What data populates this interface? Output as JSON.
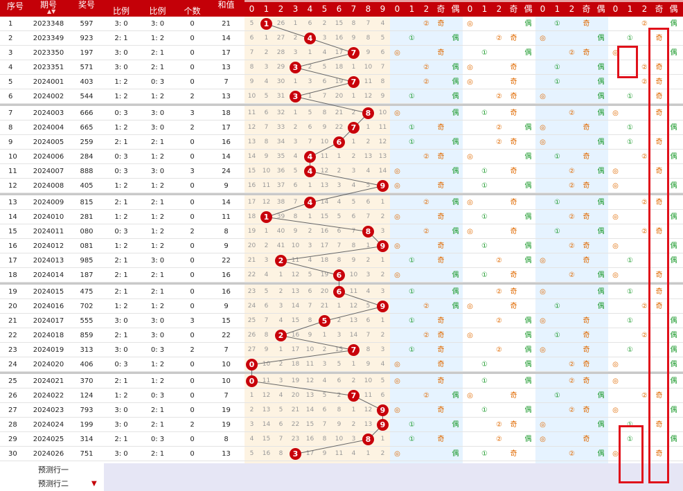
{
  "columns": {
    "info": [
      "序号",
      "期号",
      "奖号",
      "比例",
      "比例",
      "个数",
      "和值"
    ],
    "digits": [
      "0",
      "1",
      "2",
      "3",
      "4",
      "5",
      "6",
      "7",
      "8",
      "9"
    ],
    "road": [
      "0",
      "1",
      "2",
      "奇",
      "偶"
    ]
  },
  "sort_icon": "red-sort-arrows-icon",
  "rows": [
    {
      "seq": "1",
      "issue": "2023348",
      "num": "597",
      "r1": "3: 0",
      "r2": "3: 0",
      "cnt": "0",
      "sum": "21",
      "d": [
        "5",
        "1",
        "26",
        "1",
        "6",
        "2",
        "15",
        "8",
        "7",
        "4"
      ],
      "ball": 1
    },
    {
      "seq": "2",
      "issue": "2023349",
      "num": "923",
      "r1": "2: 1",
      "r2": "1: 2",
      "cnt": "0",
      "sum": "14",
      "d": [
        "6",
        "1",
        "27",
        "2",
        "4",
        "3",
        "16",
        "9",
        "8",
        "5"
      ],
      "ball": 4
    },
    {
      "seq": "3",
      "issue": "2023350",
      "num": "197",
      "r1": "3: 0",
      "r2": "2: 1",
      "cnt": "0",
      "sum": "17",
      "d": [
        "7",
        "2",
        "28",
        "3",
        "1",
        "4",
        "17",
        "7",
        "9",
        "6"
      ],
      "ball": 7
    },
    {
      "seq": "4",
      "issue": "2023351",
      "num": "571",
      "r1": "3: 0",
      "r2": "2: 1",
      "cnt": "0",
      "sum": "13",
      "d": [
        "8",
        "3",
        "29",
        "3",
        "2",
        "5",
        "18",
        "1",
        "10",
        "7"
      ],
      "ball": 3
    },
    {
      "seq": "5",
      "issue": "2024001",
      "num": "403",
      "r1": "1: 2",
      "r2": "0: 3",
      "cnt": "0",
      "sum": "7",
      "d": [
        "9",
        "4",
        "30",
        "1",
        "3",
        "6",
        "19",
        "7",
        "11",
        "8"
      ],
      "ball": 7
    },
    {
      "seq": "6",
      "issue": "2024002",
      "num": "544",
      "r1": "1: 2",
      "r2": "1: 2",
      "cnt": "2",
      "sum": "13",
      "d": [
        "10",
        "5",
        "31",
        "3",
        "1",
        "7",
        "20",
        "1",
        "12",
        "9"
      ],
      "ball": 3
    },
    {
      "seq": "7",
      "issue": "2024003",
      "num": "666",
      "r1": "0: 3",
      "r2": "3: 0",
      "cnt": "3",
      "sum": "18",
      "d": [
        "11",
        "6",
        "32",
        "1",
        "5",
        "8",
        "21",
        "2",
        "8",
        "10"
      ],
      "ball": 8
    },
    {
      "seq": "8",
      "issue": "2024004",
      "num": "665",
      "r1": "1: 2",
      "r2": "3: 0",
      "cnt": "2",
      "sum": "17",
      "d": [
        "12",
        "7",
        "33",
        "2",
        "6",
        "9",
        "22",
        "7",
        "1",
        "11"
      ],
      "ball": 7
    },
    {
      "seq": "9",
      "issue": "2024005",
      "num": "259",
      "r1": "2: 1",
      "r2": "2: 1",
      "cnt": "0",
      "sum": "16",
      "d": [
        "13",
        "8",
        "34",
        "3",
        "7",
        "10",
        "6",
        "1",
        "2",
        "12"
      ],
      "ball": 6
    },
    {
      "seq": "10",
      "issue": "2024006",
      "num": "284",
      "r1": "0: 3",
      "r2": "1: 2",
      "cnt": "0",
      "sum": "14",
      "d": [
        "14",
        "9",
        "35",
        "4",
        "4",
        "11",
        "1",
        "2",
        "13",
        "13"
      ],
      "ball": 4
    },
    {
      "seq": "11",
      "issue": "2024007",
      "num": "888",
      "r1": "0: 3",
      "r2": "3: 0",
      "cnt": "3",
      "sum": "24",
      "d": [
        "15",
        "10",
        "36",
        "5",
        "4",
        "12",
        "2",
        "3",
        "4",
        "14"
      ],
      "ball": 4
    },
    {
      "seq": "12",
      "issue": "2024008",
      "num": "405",
      "r1": "1: 2",
      "r2": "1: 2",
      "cnt": "0",
      "sum": "9",
      "d": [
        "16",
        "11",
        "37",
        "6",
        "1",
        "13",
        "3",
        "4",
        "5",
        "9"
      ],
      "ball": 9
    },
    {
      "seq": "13",
      "issue": "2024009",
      "num": "815",
      "r1": "2: 1",
      "r2": "2: 1",
      "cnt": "0",
      "sum": "14",
      "d": [
        "17",
        "12",
        "38",
        "7",
        "4",
        "14",
        "4",
        "5",
        "6",
        "1"
      ],
      "ball": 4
    },
    {
      "seq": "14",
      "issue": "2024010",
      "num": "281",
      "r1": "1: 2",
      "r2": "1: 2",
      "cnt": "0",
      "sum": "11",
      "d": [
        "18",
        "1",
        "39",
        "8",
        "1",
        "15",
        "5",
        "6",
        "7",
        "2"
      ],
      "ball": 1
    },
    {
      "seq": "15",
      "issue": "2024011",
      "num": "080",
      "r1": "0: 3",
      "r2": "1: 2",
      "cnt": "2",
      "sum": "8",
      "d": [
        "19",
        "1",
        "40",
        "9",
        "2",
        "16",
        "6",
        "7",
        "8",
        "3"
      ],
      "ball": 8
    },
    {
      "seq": "16",
      "issue": "2024012",
      "num": "081",
      "r1": "1: 2",
      "r2": "1: 2",
      "cnt": "0",
      "sum": "9",
      "d": [
        "20",
        "2",
        "41",
        "10",
        "3",
        "17",
        "7",
        "8",
        "1",
        "9"
      ],
      "ball": 9
    },
    {
      "seq": "17",
      "issue": "2024013",
      "num": "985",
      "r1": "2: 1",
      "r2": "3: 0",
      "cnt": "0",
      "sum": "22",
      "d": [
        "21",
        "3",
        "2",
        "11",
        "4",
        "18",
        "8",
        "9",
        "2",
        "1"
      ],
      "ball": 2
    },
    {
      "seq": "18",
      "issue": "2024014",
      "num": "187",
      "r1": "2: 1",
      "r2": "2: 1",
      "cnt": "0",
      "sum": "16",
      "d": [
        "22",
        "4",
        "1",
        "12",
        "5",
        "19",
        "6",
        "10",
        "3",
        "2"
      ],
      "ball": 6
    },
    {
      "seq": "19",
      "issue": "2024015",
      "num": "475",
      "r1": "2: 1",
      "r2": "2: 1",
      "cnt": "0",
      "sum": "16",
      "d": [
        "23",
        "5",
        "2",
        "13",
        "6",
        "20",
        "6",
        "11",
        "4",
        "3"
      ],
      "ball": 6
    },
    {
      "seq": "20",
      "issue": "2024016",
      "num": "702",
      "r1": "1: 2",
      "r2": "1: 2",
      "cnt": "0",
      "sum": "9",
      "d": [
        "24",
        "6",
        "3",
        "14",
        "7",
        "21",
        "1",
        "12",
        "5",
        "9"
      ],
      "ball": 9
    },
    {
      "seq": "21",
      "issue": "2024017",
      "num": "555",
      "r1": "3: 0",
      "r2": "3: 0",
      "cnt": "3",
      "sum": "15",
      "d": [
        "25",
        "7",
        "4",
        "15",
        "8",
        "5",
        "2",
        "13",
        "6",
        "1"
      ],
      "ball": 5
    },
    {
      "seq": "22",
      "issue": "2024018",
      "num": "859",
      "r1": "2: 1",
      "r2": "3: 0",
      "cnt": "0",
      "sum": "22",
      "d": [
        "26",
        "8",
        "2",
        "16",
        "9",
        "1",
        "3",
        "14",
        "7",
        "2"
      ],
      "ball": 2
    },
    {
      "seq": "23",
      "issue": "2024019",
      "num": "313",
      "r1": "3: 0",
      "r2": "0: 3",
      "cnt": "2",
      "sum": "7",
      "d": [
        "27",
        "9",
        "1",
        "17",
        "10",
        "2",
        "15",
        "7",
        "8",
        "3"
      ],
      "ball": 7
    },
    {
      "seq": "24",
      "issue": "2024020",
      "num": "406",
      "r1": "0: 3",
      "r2": "1: 2",
      "cnt": "0",
      "sum": "10",
      "d": [
        "0",
        "10",
        "2",
        "18",
        "11",
        "3",
        "5",
        "1",
        "9",
        "4"
      ],
      "ball": 0
    },
    {
      "seq": "25",
      "issue": "2024021",
      "num": "370",
      "r1": "2: 1",
      "r2": "1: 2",
      "cnt": "0",
      "sum": "10",
      "d": [
        "0",
        "11",
        "3",
        "19",
        "12",
        "4",
        "6",
        "2",
        "10",
        "5"
      ],
      "ball": 0
    },
    {
      "seq": "26",
      "issue": "2024022",
      "num": "124",
      "r1": "1: 2",
      "r2": "0: 3",
      "cnt": "0",
      "sum": "7",
      "d": [
        "1",
        "12",
        "4",
        "20",
        "13",
        "5",
        "2",
        "7",
        "11",
        "6"
      ],
      "ball": 7
    },
    {
      "seq": "27",
      "issue": "2024023",
      "num": "793",
      "r1": "3: 0",
      "r2": "2: 1",
      "cnt": "0",
      "sum": "19",
      "d": [
        "2",
        "13",
        "5",
        "21",
        "14",
        "6",
        "8",
        "1",
        "12",
        "9"
      ],
      "ball": 9
    },
    {
      "seq": "28",
      "issue": "2024024",
      "num": "199",
      "r1": "3: 0",
      "r2": "2: 1",
      "cnt": "2",
      "sum": "19",
      "d": [
        "3",
        "14",
        "6",
        "22",
        "15",
        "7",
        "9",
        "2",
        "13",
        "9"
      ],
      "ball": 9
    },
    {
      "seq": "29",
      "issue": "2024025",
      "num": "314",
      "r1": "2: 1",
      "r2": "0: 3",
      "cnt": "0",
      "sum": "8",
      "d": [
        "4",
        "15",
        "7",
        "23",
        "16",
        "8",
        "10",
        "3",
        "8",
        "1"
      ],
      "ball": 8
    },
    {
      "seq": "30",
      "issue": "2024026",
      "num": "751",
      "r1": "3: 0",
      "r2": "2: 1",
      "cnt": "0",
      "sum": "13",
      "d": [
        "5",
        "16",
        "8",
        "3",
        "17",
        "9",
        "11",
        "4",
        "1",
        "2"
      ],
      "ball": 3
    }
  ],
  "prediction_rows": [
    "预测行一",
    "预测行二"
  ],
  "colors": {
    "header_bg": "#c40008",
    "ball": "#c8000a",
    "highlight": "#e0101a",
    "digit_area": "#fdf3e2",
    "road_a": "#e6f3ff",
    "road_b": "#ffffff",
    "pred_bg": "#e6e6f5"
  }
}
